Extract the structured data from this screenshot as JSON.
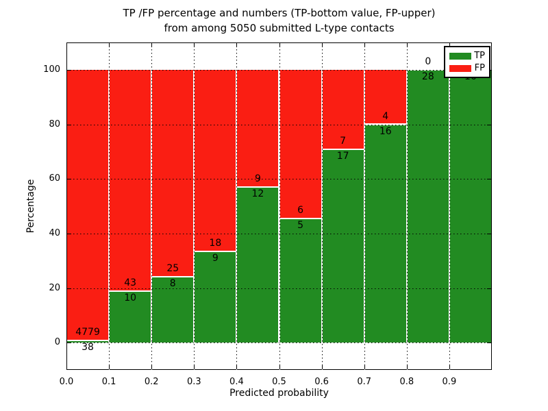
{
  "chart_data": {
    "type": "bar",
    "stacked": true,
    "title_lines": [
      "TP /FP percentage and numbers (TP-bottom value, FP-upper)",
      "from among 5050 submitted L-type contacts"
    ],
    "xlabel": "Predicted probability",
    "ylabel": "Percentage",
    "xlim": [
      0,
      1.0
    ],
    "ylim": [
      -10,
      110
    ],
    "x_tick_labels": [
      "0.0",
      "0.1",
      "0.2",
      "0.3",
      "0.4",
      "0.5",
      "0.6",
      "0.7",
      "0.8",
      "0.9"
    ],
    "y_tick_values": [
      0,
      20,
      40,
      60,
      80,
      100
    ],
    "grid": {
      "style": "dotted",
      "axes": "both",
      "drawn_over_bars": true
    },
    "bins": {
      "start": 0.0,
      "width": 0.1,
      "count": 10
    },
    "total_contacts": 5050,
    "bar_edge_color": "#ffffff",
    "series": [
      {
        "name": "TP",
        "color": "#228b22",
        "counts": [
          38,
          10,
          8,
          9,
          12,
          5,
          17,
          16,
          28,
          16
        ]
      },
      {
        "name": "FP",
        "color": "#fa1e13",
        "counts": [
          4779,
          43,
          25,
          18,
          9,
          6,
          7,
          4,
          0,
          0
        ]
      }
    ],
    "tp_percent_of_bin": [
      0.79,
      18.87,
      24.24,
      33.33,
      57.14,
      45.45,
      70.83,
      80.0,
      100.0,
      100.0
    ],
    "legend": {
      "position": "upper right",
      "entries": [
        {
          "label": "TP",
          "color": "#228b22"
        },
        {
          "label": "FP",
          "color": "#fa1e13"
        }
      ]
    }
  }
}
